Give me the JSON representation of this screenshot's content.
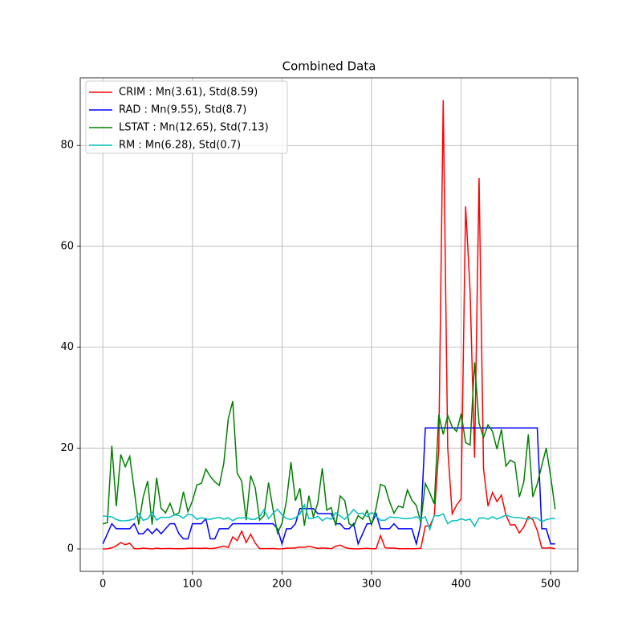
{
  "chart_data": {
    "type": "line",
    "title": "Combined Data",
    "x": [
      0,
      5,
      10,
      15,
      20,
      25,
      30,
      35,
      40,
      45,
      50,
      55,
      60,
      65,
      70,
      75,
      80,
      85,
      90,
      95,
      100,
      105,
      110,
      115,
      120,
      125,
      130,
      135,
      140,
      145,
      150,
      155,
      160,
      165,
      170,
      175,
      180,
      185,
      190,
      195,
      200,
      205,
      210,
      215,
      220,
      225,
      230,
      235,
      240,
      245,
      250,
      255,
      260,
      265,
      270,
      275,
      280,
      285,
      290,
      295,
      300,
      305,
      310,
      315,
      320,
      325,
      330,
      335,
      340,
      345,
      350,
      355,
      360,
      365,
      370,
      375,
      380,
      385,
      390,
      395,
      400,
      405,
      410,
      415,
      420,
      425,
      430,
      435,
      440,
      445,
      450,
      455,
      460,
      465,
      470,
      475,
      480,
      485,
      490,
      495,
      500,
      505
    ],
    "series": [
      {
        "name": "CRIM : Mn(3.61), Std(8.59)",
        "color": "#ff0000",
        "values": [
          0.006,
          0.03,
          0.22,
          0.63,
          1.25,
          0.84,
          1.13,
          0.06,
          0.03,
          0.17,
          0.09,
          0.01,
          0.15,
          0.04,
          0.09,
          0.1,
          0.04,
          0.06,
          0.05,
          0.12,
          0.15,
          0.13,
          0.11,
          0.17,
          0.07,
          0.15,
          0.34,
          0.56,
          0.29,
          2.38,
          1.66,
          3.53,
          1.27,
          2.92,
          1.21,
          0.07,
          0.06,
          0.06,
          0.09,
          0.01,
          0.02,
          0.14,
          0.17,
          0.2,
          0.36,
          0.32,
          0.54,
          0.33,
          0.11,
          0.19,
          0.14,
          0.04,
          0.54,
          0.76,
          0.3,
          0.1,
          0.04,
          0.01,
          0.08,
          0.12,
          0.04,
          0.05,
          2.64,
          0.25,
          0.17,
          0.19,
          0.05,
          0.04,
          0.06,
          0.03,
          0.06,
          0.11,
          4.54,
          4.56,
          6.54,
          19.6,
          88.98,
          20.08,
          6.96,
          8.72,
          9.92,
          67.92,
          51.14,
          18.08,
          73.53,
          15.86,
          8.49,
          11.16,
          9.39,
          10.67,
          6.72,
          4.75,
          4.81,
          3.16,
          4.35,
          6.39,
          5.82,
          3.67,
          0.21,
          0.18,
          0.22,
          0.05
        ]
      },
      {
        "name": "RAD : Mn(9.55), Std(8.7)",
        "color": "#0000ff",
        "values": [
          1,
          3,
          5,
          4,
          4,
          4,
          4,
          5,
          3,
          3,
          4,
          3,
          4,
          3,
          4,
          5,
          5,
          3,
          2,
          2,
          5,
          5,
          5,
          6,
          2,
          2,
          4,
          4,
          4,
          5,
          5,
          5,
          5,
          5,
          5,
          5,
          5,
          5,
          5,
          4,
          1,
          4,
          4,
          5,
          8,
          8,
          8,
          8,
          7,
          7,
          7,
          7,
          5,
          5,
          4,
          4,
          5,
          1,
          3,
          5,
          5,
          7,
          4,
          4,
          4,
          5,
          4,
          4,
          4,
          4,
          1,
          5,
          24,
          24,
          24,
          24,
          24,
          24,
          24,
          24,
          24,
          24,
          24,
          24,
          24,
          24,
          24,
          24,
          24,
          24,
          24,
          24,
          24,
          24,
          24,
          24,
          24,
          24,
          4,
          4,
          1,
          1
        ]
      },
      {
        "name": "LSTAT : Mn(12.65), Std(7.13)",
        "color": "#008000",
        "values": [
          4.98,
          5.21,
          20.45,
          8.47,
          18.72,
          16.3,
          18.35,
          11.69,
          4.84,
          10.26,
          13.45,
          4.81,
          14.1,
          8.05,
          7.14,
          9.04,
          6.72,
          7.14,
          11.34,
          7.39,
          9.5,
          12.7,
          13,
          15.84,
          14.37,
          13.3,
          12.6,
          16.96,
          25.8,
          29.29,
          15.02,
          13.44,
          5.7,
          14.55,
          12.2,
          5.73,
          6.6,
          13.15,
          7.85,
          3.1,
          5.1,
          9.5,
          17.21,
          9.55,
          12.03,
          4.6,
          10.56,
          6.36,
          9.16,
          16,
          7.7,
          8.2,
          4.6,
          10.5,
          9.6,
          5,
          4.5,
          6.6,
          5.9,
          7.6,
          4.8,
          8.1,
          12.8,
          12.4,
          9.4,
          7.1,
          8.5,
          8.2,
          11.7,
          9.7,
          8.6,
          5.2,
          13,
          11.1,
          8.9,
          26.6,
          22.7,
          26.5,
          24.2,
          23.3,
          26.8,
          21.1,
          20.6,
          36.98,
          24.9,
          22.1,
          24.6,
          23.3,
          19.8,
          23.7,
          16.4,
          17.6,
          17.1,
          10.3,
          13.3,
          22.7,
          10.3,
          12.9,
          16.5,
          20,
          14.3,
          7.88
        ]
      },
      {
        "name": "RM : Mn(6.28), Std(0.7)",
        "color": "#00bfbf",
        "values": [
          6.58,
          6.43,
          6.38,
          5.83,
          5.57,
          5.6,
          5.71,
          5.93,
          7.02,
          5.68,
          5.96,
          7.25,
          5.71,
          6.29,
          6.24,
          6.29,
          6.77,
          6.6,
          6.1,
          6.86,
          6.73,
          5.85,
          6.2,
          5.93,
          5.87,
          6.09,
          6.25,
          5.9,
          6.17,
          5.6,
          6.12,
          6.15,
          6.2,
          5.88,
          5.88,
          6.42,
          7.77,
          6,
          7.08,
          7.88,
          6.77,
          6,
          5.85,
          6.18,
          6.95,
          8.73,
          5.98,
          6.09,
          6.48,
          5.6,
          6.17,
          5.88,
          7.2,
          6.54,
          5.86,
          6.78,
          7.82,
          6.98,
          7.1,
          6.38,
          7.24,
          6.49,
          5.7,
          5.7,
          6.3,
          6.27,
          6.2,
          6.03,
          6,
          6.1,
          6.4,
          5.9,
          6.4,
          3.86,
          6.6,
          6.55,
          6.97,
          5,
          5.59,
          5.59,
          5.99,
          5.68,
          5.9,
          4.52,
          6.1,
          6.14,
          5.9,
          6.4,
          5.9,
          6.3,
          6.7,
          6.4,
          6.2,
          6.2,
          6,
          5.9,
          6.2,
          6.1,
          5.4,
          5.8,
          6,
          6.03
        ]
      }
    ],
    "xlim": [
      -25.25,
      530.25
    ],
    "ylim": [
      -4.45,
      93.4
    ],
    "xticks": [
      0,
      100,
      200,
      300,
      400,
      500
    ],
    "yticks": [
      0,
      20,
      40,
      60,
      80
    ],
    "grid": true,
    "legend": "upper left"
  }
}
